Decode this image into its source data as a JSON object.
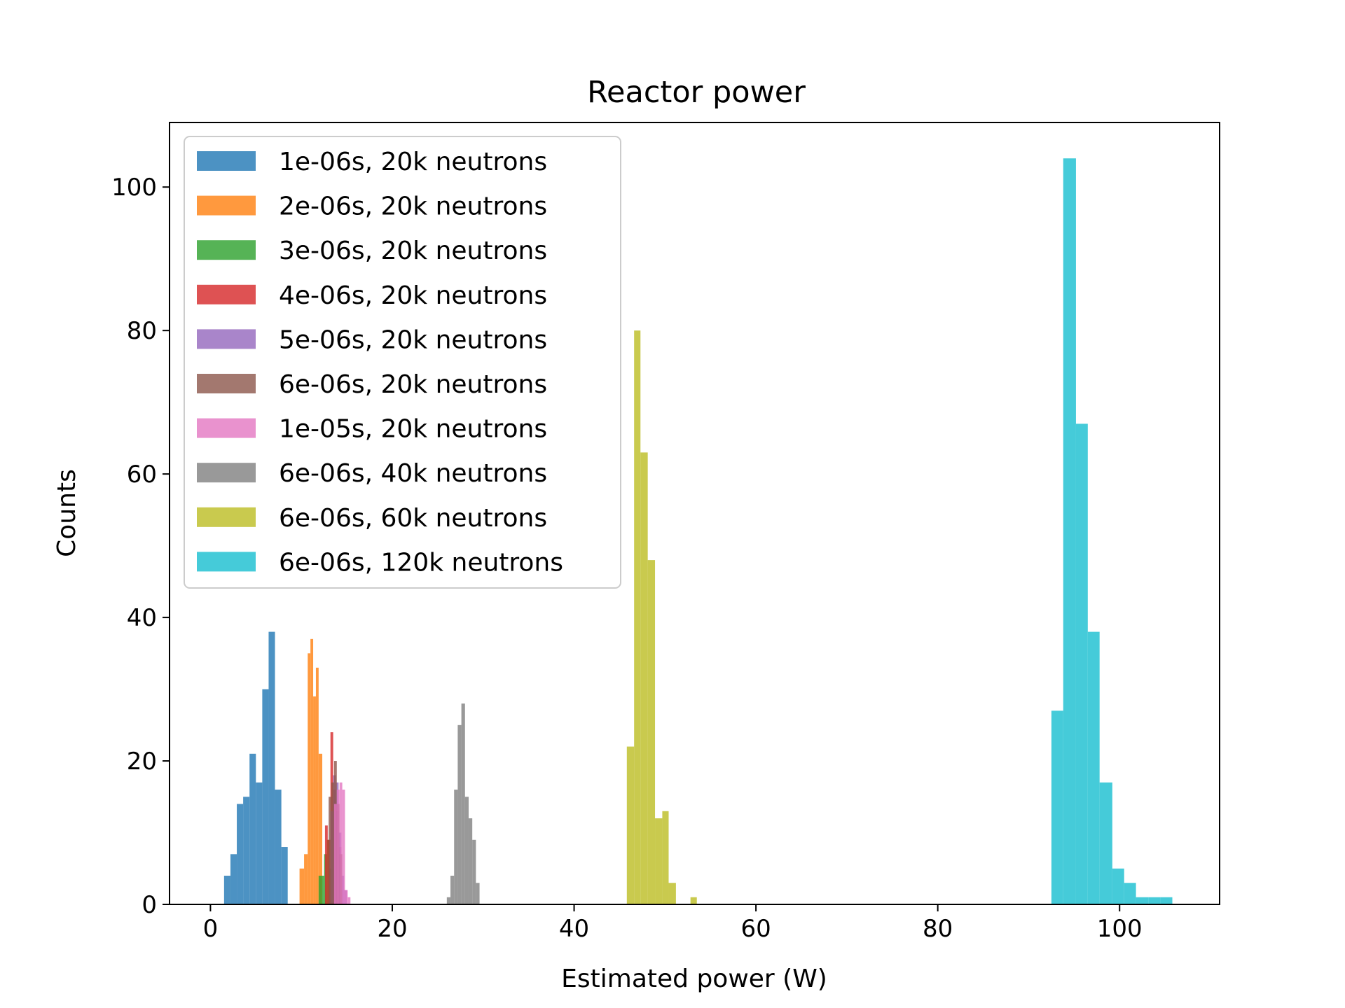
{
  "chart_data": {
    "type": "bar",
    "subtype": "histogram",
    "title": "Reactor power",
    "xlabel": "Estimated power (W)",
    "ylabel": "Counts",
    "xlim": [
      -4.5,
      111
    ],
    "ylim": [
      0,
      109
    ],
    "xticks": [
      0,
      20,
      40,
      60,
      80,
      100
    ],
    "yticks": [
      0,
      20,
      40,
      60,
      80,
      100
    ],
    "grid": false,
    "legend_position": "top-left",
    "series": [
      {
        "name": "1e-06s, 20k neutrons",
        "color": "#1f77b4",
        "bins": [
          {
            "x0": 1.5,
            "x1": 2.2,
            "count": 4
          },
          {
            "x0": 2.2,
            "x1": 2.9,
            "count": 7
          },
          {
            "x0": 2.9,
            "x1": 3.6,
            "count": 14
          },
          {
            "x0": 3.6,
            "x1": 4.3,
            "count": 15
          },
          {
            "x0": 4.3,
            "x1": 5.0,
            "count": 21
          },
          {
            "x0": 5.0,
            "x1": 5.7,
            "count": 17
          },
          {
            "x0": 5.7,
            "x1": 6.4,
            "count": 30
          },
          {
            "x0": 6.4,
            "x1": 7.1,
            "count": 38
          },
          {
            "x0": 7.1,
            "x1": 7.8,
            "count": 16
          },
          {
            "x0": 7.8,
            "x1": 8.5,
            "count": 8
          }
        ]
      },
      {
        "name": "2e-06s, 20k neutrons",
        "color": "#ff7f0e",
        "bins": [
          {
            "x0": 9.8,
            "x1": 10.3,
            "count": 5
          },
          {
            "x0": 10.3,
            "x1": 10.7,
            "count": 7
          },
          {
            "x0": 10.7,
            "x1": 11.0,
            "count": 35
          },
          {
            "x0": 11.0,
            "x1": 11.3,
            "count": 37
          },
          {
            "x0": 11.3,
            "x1": 11.6,
            "count": 29
          },
          {
            "x0": 11.6,
            "x1": 11.9,
            "count": 33
          },
          {
            "x0": 11.9,
            "x1": 12.3,
            "count": 21
          }
        ]
      },
      {
        "name": "3e-06s, 20k neutrons",
        "color": "#2ca02c",
        "bins": [
          {
            "x0": 11.9,
            "x1": 12.2,
            "count": 4
          },
          {
            "x0": 12.2,
            "x1": 12.5,
            "count": 4
          },
          {
            "x0": 12.5,
            "x1": 12.8,
            "count": 7
          },
          {
            "x0": 12.8,
            "x1": 13.1,
            "count": 9
          },
          {
            "x0": 13.1,
            "x1": 13.4,
            "count": 5
          }
        ]
      },
      {
        "name": "4e-06s, 20k neutrons",
        "color": "#d62728",
        "bins": [
          {
            "x0": 12.6,
            "x1": 12.9,
            "count": 11
          },
          {
            "x0": 12.9,
            "x1": 13.2,
            "count": 9
          },
          {
            "x0": 13.2,
            "x1": 13.5,
            "count": 24
          },
          {
            "x0": 13.5,
            "x1": 13.8,
            "count": 16
          },
          {
            "x0": 13.8,
            "x1": 14.1,
            "count": 13
          },
          {
            "x0": 14.1,
            "x1": 14.4,
            "count": 8
          }
        ]
      },
      {
        "name": "5e-06s, 20k neutrons",
        "color": "#9467bd",
        "bins": [
          {
            "x0": 13.2,
            "x1": 13.5,
            "count": 13
          },
          {
            "x0": 13.5,
            "x1": 13.8,
            "count": 18
          },
          {
            "x0": 13.8,
            "x1": 14.1,
            "count": 17
          },
          {
            "x0": 14.1,
            "x1": 14.4,
            "count": 10
          },
          {
            "x0": 14.4,
            "x1": 14.7,
            "count": 4
          },
          {
            "x0": 14.7,
            "x1": 15.0,
            "count": 2
          }
        ]
      },
      {
        "name": "6e-06s, 20k neutrons",
        "color": "#8c564b",
        "bins": [
          {
            "x0": 13.0,
            "x1": 13.3,
            "count": 15
          },
          {
            "x0": 13.3,
            "x1": 13.6,
            "count": 17
          },
          {
            "x0": 13.6,
            "x1": 13.9,
            "count": 20
          },
          {
            "x0": 13.9,
            "x1": 14.2,
            "count": 14
          },
          {
            "x0": 14.2,
            "x1": 14.5,
            "count": 7
          }
        ]
      },
      {
        "name": "1e-05s, 20k neutrons",
        "color": "#e377c2",
        "bins": [
          {
            "x0": 13.6,
            "x1": 13.9,
            "count": 14
          },
          {
            "x0": 13.9,
            "x1": 14.2,
            "count": 16
          },
          {
            "x0": 14.2,
            "x1": 14.5,
            "count": 17
          },
          {
            "x0": 14.5,
            "x1": 14.8,
            "count": 16
          },
          {
            "x0": 14.8,
            "x1": 15.1,
            "count": 2
          },
          {
            "x0": 15.1,
            "x1": 15.4,
            "count": 1
          }
        ]
      },
      {
        "name": "6e-06s, 40k neutrons",
        "color": "#7f7f7f",
        "bins": [
          {
            "x0": 26.0,
            "x1": 26.4,
            "count": 1
          },
          {
            "x0": 26.4,
            "x1": 26.8,
            "count": 4
          },
          {
            "x0": 26.8,
            "x1": 27.2,
            "count": 16
          },
          {
            "x0": 27.2,
            "x1": 27.6,
            "count": 25
          },
          {
            "x0": 27.6,
            "x1": 28.0,
            "count": 28
          },
          {
            "x0": 28.0,
            "x1": 28.4,
            "count": 15
          },
          {
            "x0": 28.4,
            "x1": 28.8,
            "count": 12
          },
          {
            "x0": 28.8,
            "x1": 29.2,
            "count": 9
          },
          {
            "x0": 29.2,
            "x1": 29.6,
            "count": 3
          }
        ]
      },
      {
        "name": "6e-06s, 60k neutrons",
        "color": "#bcbd22",
        "bins": [
          {
            "x0": 45.8,
            "x1": 46.6,
            "count": 22
          },
          {
            "x0": 46.6,
            "x1": 47.3,
            "count": 80
          },
          {
            "x0": 47.3,
            "x1": 48.1,
            "count": 63
          },
          {
            "x0": 48.1,
            "x1": 48.9,
            "count": 48
          },
          {
            "x0": 48.9,
            "x1": 49.7,
            "count": 12
          },
          {
            "x0": 49.7,
            "x1": 50.4,
            "count": 13
          },
          {
            "x0": 50.4,
            "x1": 51.2,
            "count": 3
          },
          {
            "x0": 51.2,
            "x1": 52.0,
            "count": 0
          },
          {
            "x0": 52.0,
            "x1": 52.8,
            "count": 0
          },
          {
            "x0": 52.8,
            "x1": 53.5,
            "count": 1
          }
        ]
      },
      {
        "name": "6e-06s, 120k neutrons",
        "color": "#17becf",
        "bins": [
          {
            "x0": 92.5,
            "x1": 93.8,
            "count": 27
          },
          {
            "x0": 93.8,
            "x1": 95.2,
            "count": 104
          },
          {
            "x0": 95.2,
            "x1": 96.5,
            "count": 67
          },
          {
            "x0": 96.5,
            "x1": 97.8,
            "count": 38
          },
          {
            "x0": 97.8,
            "x1": 99.2,
            "count": 17
          },
          {
            "x0": 99.2,
            "x1": 100.5,
            "count": 5
          },
          {
            "x0": 100.5,
            "x1": 101.8,
            "count": 3
          },
          {
            "x0": 101.8,
            "x1": 103.2,
            "count": 1
          },
          {
            "x0": 103.2,
            "x1": 104.5,
            "count": 1
          },
          {
            "x0": 104.5,
            "x1": 105.8,
            "count": 1
          }
        ]
      }
    ]
  }
}
